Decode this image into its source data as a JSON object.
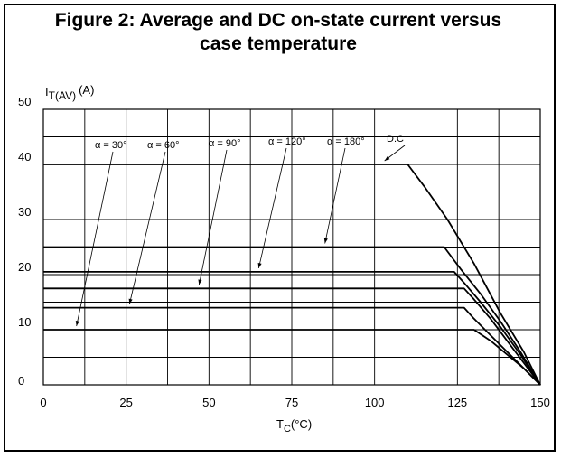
{
  "figure": {
    "title": "Figure 2: Average and DC on-state current versus\ncase temperature"
  },
  "chart_data": {
    "type": "line",
    "title": "Figure 2: Average and DC on-state current versus case temperature",
    "xlabel": {
      "main": "T",
      "sub": "C",
      "unit": "(°C)"
    },
    "ylabel": {
      "main": "I",
      "sub": "T(AV)",
      "unit": "(A)"
    },
    "xlim": [
      0,
      150
    ],
    "ylim": [
      0,
      50
    ],
    "x_ticks": [
      "0",
      "25",
      "50",
      "75",
      "100",
      "125",
      "150"
    ],
    "y_ticks": [
      "0",
      "10",
      "20",
      "30",
      "40",
      "50"
    ],
    "grid": true,
    "series": [
      {
        "name": "α = 30°",
        "x": [
          0,
          130,
          135,
          140,
          145,
          150
        ],
        "y": [
          10,
          10,
          8,
          5.5,
          3,
          0
        ]
      },
      {
        "name": "α = 60°",
        "x": [
          0,
          127,
          130,
          135,
          140,
          145,
          150
        ],
        "y": [
          14,
          14,
          12,
          9,
          6,
          3,
          0
        ]
      },
      {
        "name": "α = 90°",
        "x": [
          0,
          127,
          130,
          135,
          140,
          145,
          150
        ],
        "y": [
          17.5,
          17.5,
          15.5,
          12,
          8,
          4,
          0
        ]
      },
      {
        "name": "α = 120°",
        "x": [
          0,
          124,
          127,
          132,
          138,
          144,
          150
        ],
        "y": [
          20.5,
          20.5,
          18.5,
          15,
          10.5,
          5.5,
          0
        ]
      },
      {
        "name": "α = 180°",
        "x": [
          0,
          121,
          126,
          132,
          138,
          144,
          150
        ],
        "y": [
          25,
          25,
          21,
          16.5,
          11.5,
          6,
          0
        ]
      },
      {
        "name": "D.C",
        "x": [
          0,
          110,
          115,
          122,
          130,
          138,
          145,
          150
        ],
        "y": [
          40,
          40,
          36,
          30,
          22,
          13,
          6,
          0
        ]
      }
    ]
  }
}
